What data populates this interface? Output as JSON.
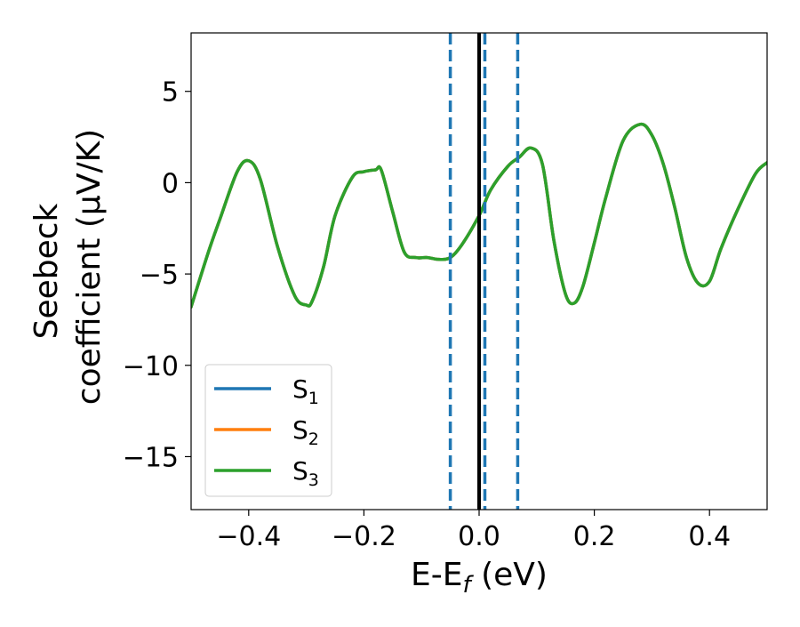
{
  "chart_data": {
    "type": "line",
    "xlabel": "E-E",
    "xlabel_sub": "f",
    "xlabel_unit": " (eV)",
    "ylabel_line1": "Seebeck",
    "ylabel_line2": "coefficient  (μV/K)",
    "xlim": [
      -0.5,
      0.5
    ],
    "ylim": [
      -17.9,
      8.2
    ],
    "xticks": [
      -0.4,
      -0.2,
      0.0,
      0.2,
      0.4
    ],
    "xtick_labels": [
      "−0.4",
      "−0.2",
      "0.0",
      "0.2",
      "0.4"
    ],
    "yticks": [
      5,
      0,
      -5,
      -10,
      -15
    ],
    "ytick_labels": [
      "5",
      "0",
      "−5",
      "−10",
      "−15"
    ],
    "grid": false,
    "legend_position": "lower-left",
    "vertical_lines": [
      {
        "x": 0.0,
        "style": "solid",
        "color": "#000000"
      },
      {
        "x": -0.05,
        "style": "dashed",
        "color": "#1f77b4"
      },
      {
        "x": 0.01,
        "style": "dashed",
        "color": "#1f77b4"
      },
      {
        "x": 0.067,
        "style": "dashed",
        "color": "#1f77b4"
      }
    ],
    "x": [
      -0.5,
      -0.47,
      -0.45,
      -0.42,
      -0.4,
      -0.38,
      -0.35,
      -0.32,
      -0.3,
      -0.29,
      -0.27,
      -0.25,
      -0.22,
      -0.2,
      -0.18,
      -0.17,
      -0.15,
      -0.13,
      -0.11,
      -0.09,
      -0.07,
      -0.05,
      -0.03,
      0.0,
      0.02,
      0.05,
      0.07,
      0.09,
      0.11,
      0.13,
      0.15,
      0.165,
      0.18,
      0.2,
      0.22,
      0.25,
      0.28,
      0.3,
      0.32,
      0.34,
      0.36,
      0.38,
      0.4,
      0.42,
      0.45,
      0.48,
      0.5
    ],
    "series": [
      {
        "name": "S",
        "name_sub": "1",
        "color": "#1f77b4",
        "values": [
          -6.8,
          -3.8,
          -2.0,
          0.6,
          1.2,
          0.2,
          -3.5,
          -6.2,
          -6.7,
          -6.5,
          -4.6,
          -1.8,
          0.3,
          0.6,
          0.7,
          0.7,
          -1.6,
          -3.8,
          -4.1,
          -4.1,
          -4.2,
          -4.1,
          -3.4,
          -1.8,
          -0.4,
          0.9,
          1.4,
          1.9,
          1.0,
          -3.2,
          -6.1,
          -6.6,
          -5.7,
          -3.3,
          -0.8,
          2.3,
          3.2,
          2.6,
          1.0,
          -1.4,
          -4.1,
          -5.5,
          -5.4,
          -3.6,
          -1.4,
          0.5,
          1.1
        ]
      },
      {
        "name": "S",
        "name_sub": "2",
        "color": "#ff7f0e",
        "values": [
          -6.8,
          -3.8,
          -2.0,
          0.6,
          1.2,
          0.2,
          -3.5,
          -6.2,
          -6.7,
          -6.5,
          -4.6,
          -1.8,
          0.3,
          0.6,
          0.7,
          0.7,
          -1.6,
          -3.8,
          -4.1,
          -4.1,
          -4.2,
          -4.1,
          -3.4,
          -1.8,
          -0.4,
          0.9,
          1.4,
          1.9,
          1.0,
          -3.2,
          -6.1,
          -6.6,
          -5.7,
          -3.3,
          -0.8,
          2.3,
          3.2,
          2.6,
          1.0,
          -1.4,
          -4.1,
          -5.5,
          -5.4,
          -3.6,
          -1.4,
          0.5,
          1.1
        ]
      },
      {
        "name": "S",
        "name_sub": "3",
        "color": "#2ca02c",
        "values": [
          -6.8,
          -3.8,
          -2.0,
          0.6,
          1.2,
          0.2,
          -3.5,
          -6.2,
          -6.7,
          -6.5,
          -4.6,
          -1.8,
          0.3,
          0.6,
          0.7,
          0.7,
          -1.6,
          -3.8,
          -4.1,
          -4.1,
          -4.2,
          -4.1,
          -3.4,
          -1.8,
          -0.4,
          0.9,
          1.4,
          1.9,
          1.0,
          -3.2,
          -6.1,
          -6.6,
          -5.7,
          -3.3,
          -0.8,
          2.3,
          3.2,
          2.6,
          1.0,
          -1.4,
          -4.1,
          -5.5,
          -5.4,
          -3.6,
          -1.4,
          0.5,
          1.1
        ]
      }
    ]
  }
}
